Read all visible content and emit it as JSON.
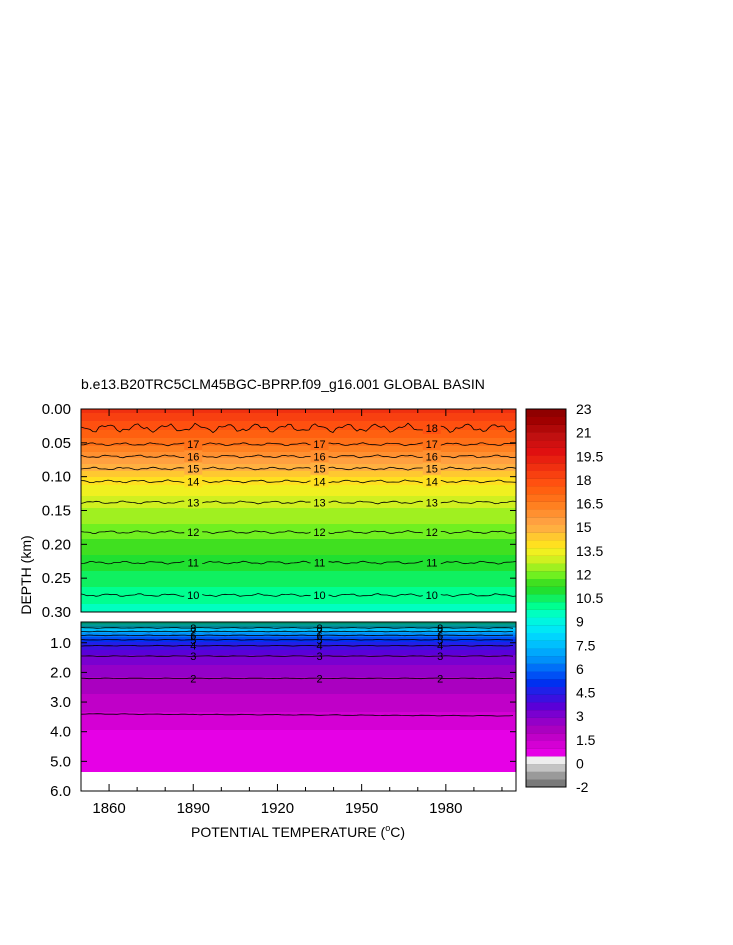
{
  "chart_data": {
    "type": "heatmap",
    "title": "b.e13.B20TRC5CLM45BGC-BPRP.f09_g16.001 GLOBAL BASIN",
    "xlabel_prefix": "POTENTIAL TEMPERATURE (",
    "xlabel_unit_sup": "o",
    "xlabel_suffix": "C)",
    "ylabel": "DEPTH (km)",
    "xlim": [
      1850,
      2005
    ],
    "x_ticks": [
      "1860",
      "1890",
      "1920",
      "1950",
      "1980"
    ],
    "x_tick_values": [
      1860,
      1890,
      1920,
      1950,
      1980
    ],
    "upper_panel": {
      "ylim": [
        0.0,
        0.3
      ],
      "y_ticks": [
        "0.00",
        "0.05",
        "0.10",
        "0.15",
        "0.20",
        "0.25",
        "0.30"
      ],
      "y_tick_values": [
        0.0,
        0.05,
        0.1,
        0.15,
        0.2,
        0.25,
        0.3
      ],
      "contours": [
        {
          "level": 18,
          "depth": 0.028,
          "label": "18"
        },
        {
          "level": 17,
          "depth": 0.052,
          "label": "17"
        },
        {
          "level": 16,
          "depth": 0.07,
          "label": "16"
        },
        {
          "level": 15,
          "depth": 0.088,
          "label": "15"
        },
        {
          "level": 14,
          "depth": 0.107,
          "label": "14"
        },
        {
          "level": 13,
          "depth": 0.138,
          "label": "13"
        },
        {
          "level": 12,
          "depth": 0.182,
          "label": "12"
        },
        {
          "level": 11,
          "depth": 0.227,
          "label": "11"
        },
        {
          "level": 10,
          "depth": 0.275,
          "label": "10"
        }
      ],
      "label_years": [
        1890,
        1935,
        1975
      ]
    },
    "lower_panel": {
      "ylim": [
        0.3,
        6.0
      ],
      "y_ticks": [
        "1.0",
        "2.0",
        "3.0",
        "4.0",
        "5.0",
        "6.0"
      ],
      "y_tick_values": [
        1.0,
        2.0,
        3.0,
        4.0,
        5.0,
        6.0
      ],
      "contours": [
        {
          "level": 8,
          "depth": 0.5,
          "label": "8"
        },
        {
          "level": 7,
          "depth": 0.62,
          "label": "7"
        },
        {
          "level": 6,
          "depth": 0.75,
          "label": "6"
        },
        {
          "level": 5,
          "depth": 0.9,
          "label": "5"
        },
        {
          "level": 4,
          "depth": 1.1,
          "label": "4"
        },
        {
          "level": 3,
          "depth": 1.45,
          "label": "3"
        },
        {
          "level": 2,
          "depth": 2.2,
          "label": "2"
        },
        {
          "level": 1,
          "depth": 3.4,
          "label": ""
        }
      ],
      "label_years": [
        1890,
        1935,
        1978
      ],
      "data_bottom_depth": 5.35
    },
    "colorbar": {
      "labels": [
        "23",
        "21",
        "19.5",
        "18",
        "16.5",
        "15",
        "13.5",
        "12",
        "10.5",
        "9",
        "7.5",
        "6",
        "4.5",
        "3",
        "1.5",
        "0",
        "-2"
      ],
      "label_values": [
        23,
        21,
        19.5,
        18,
        16.5,
        15,
        13.5,
        12,
        10.5,
        9,
        7.5,
        6,
        4.5,
        3,
        1.5,
        0,
        -2
      ],
      "min": -2,
      "max": 23,
      "colors": [
        "#7a7a7a",
        "#9a9a9a",
        "#c4c4c4",
        "#eeeeee",
        "#e600e6",
        "#d400d4",
        "#c000c8",
        "#aa00c0",
        "#9400c8",
        "#7a00d0",
        "#5a00d8",
        "#3a10e0",
        "#2020e8",
        "#0030f0",
        "#0050f5",
        "#0070f8",
        "#0090fa",
        "#00a8fc",
        "#00c0fd",
        "#00d5fe",
        "#00e8f5",
        "#00f5e0",
        "#00ffc0",
        "#00ff90",
        "#10f060",
        "#20e030",
        "#40e020",
        "#70f020",
        "#a0f020",
        "#d0f020",
        "#f0f020",
        "#ffe020",
        "#ffc830",
        "#ffb040",
        "#ffa040",
        "#ff9030",
        "#ff8020",
        "#ff7018",
        "#ff6010",
        "#ff5010",
        "#f84010",
        "#f03010",
        "#e82010",
        "#e01010",
        "#d01010",
        "#c01010",
        "#b00808",
        "#a00000",
        "#900000"
      ]
    }
  }
}
